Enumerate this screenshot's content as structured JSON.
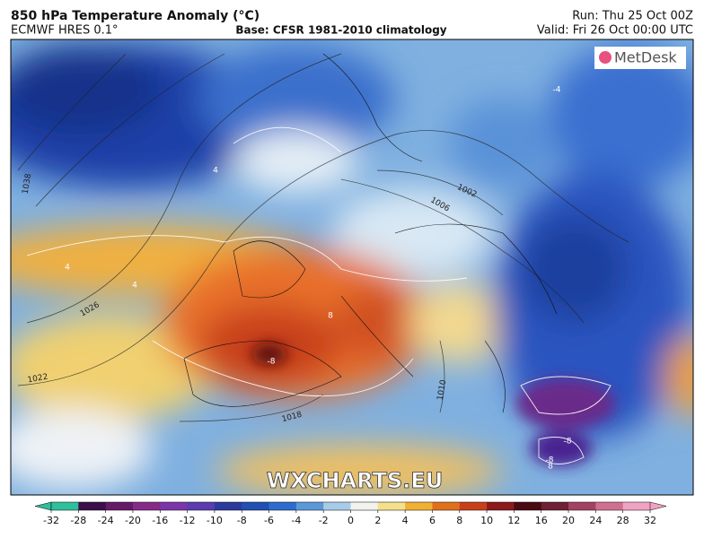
{
  "header": {
    "title": "850 hPa Temperature Anomaly (°C)",
    "model": "ECMWF HRES 0.1°",
    "base": "Base: CFSR 1981-2010 climatology",
    "run": "Run: Thu 25 Oct 00Z",
    "valid": "Valid: Fri 26 Oct 00:00 UTC"
  },
  "logo": "MetDesk",
  "watermark": "WXCHARTS.EU",
  "map": {
    "pressure_labels": [
      "1038",
      "1026",
      "1022",
      "1018",
      "1006",
      "1002",
      "1010"
    ],
    "anomaly_labels": [
      "4",
      "4",
      "-4",
      "8",
      "-8",
      "8",
      "-8",
      "-8",
      "4"
    ]
  },
  "colorbar": {
    "ticks": [
      -32,
      -28,
      -24,
      -20,
      -16,
      -12,
      -10,
      -8,
      -6,
      -4,
      -2,
      0,
      2,
      4,
      6,
      8,
      10,
      12,
      16,
      20,
      24,
      28,
      32
    ],
    "colors": [
      "#2fbf9a",
      "#3a0f4a",
      "#641a66",
      "#862a88",
      "#7a35a8",
      "#5a3cae",
      "#2c3a9c",
      "#2150b2",
      "#2c6ccc",
      "#5a98d8",
      "#a8cbe8",
      "#f2f2ee",
      "#f4df8a",
      "#f0b034",
      "#e0701c",
      "#c8401a",
      "#8c1a1a",
      "#4a0a12",
      "#6e2034",
      "#a24262",
      "#d07090",
      "#f0a2c2"
    ]
  }
}
